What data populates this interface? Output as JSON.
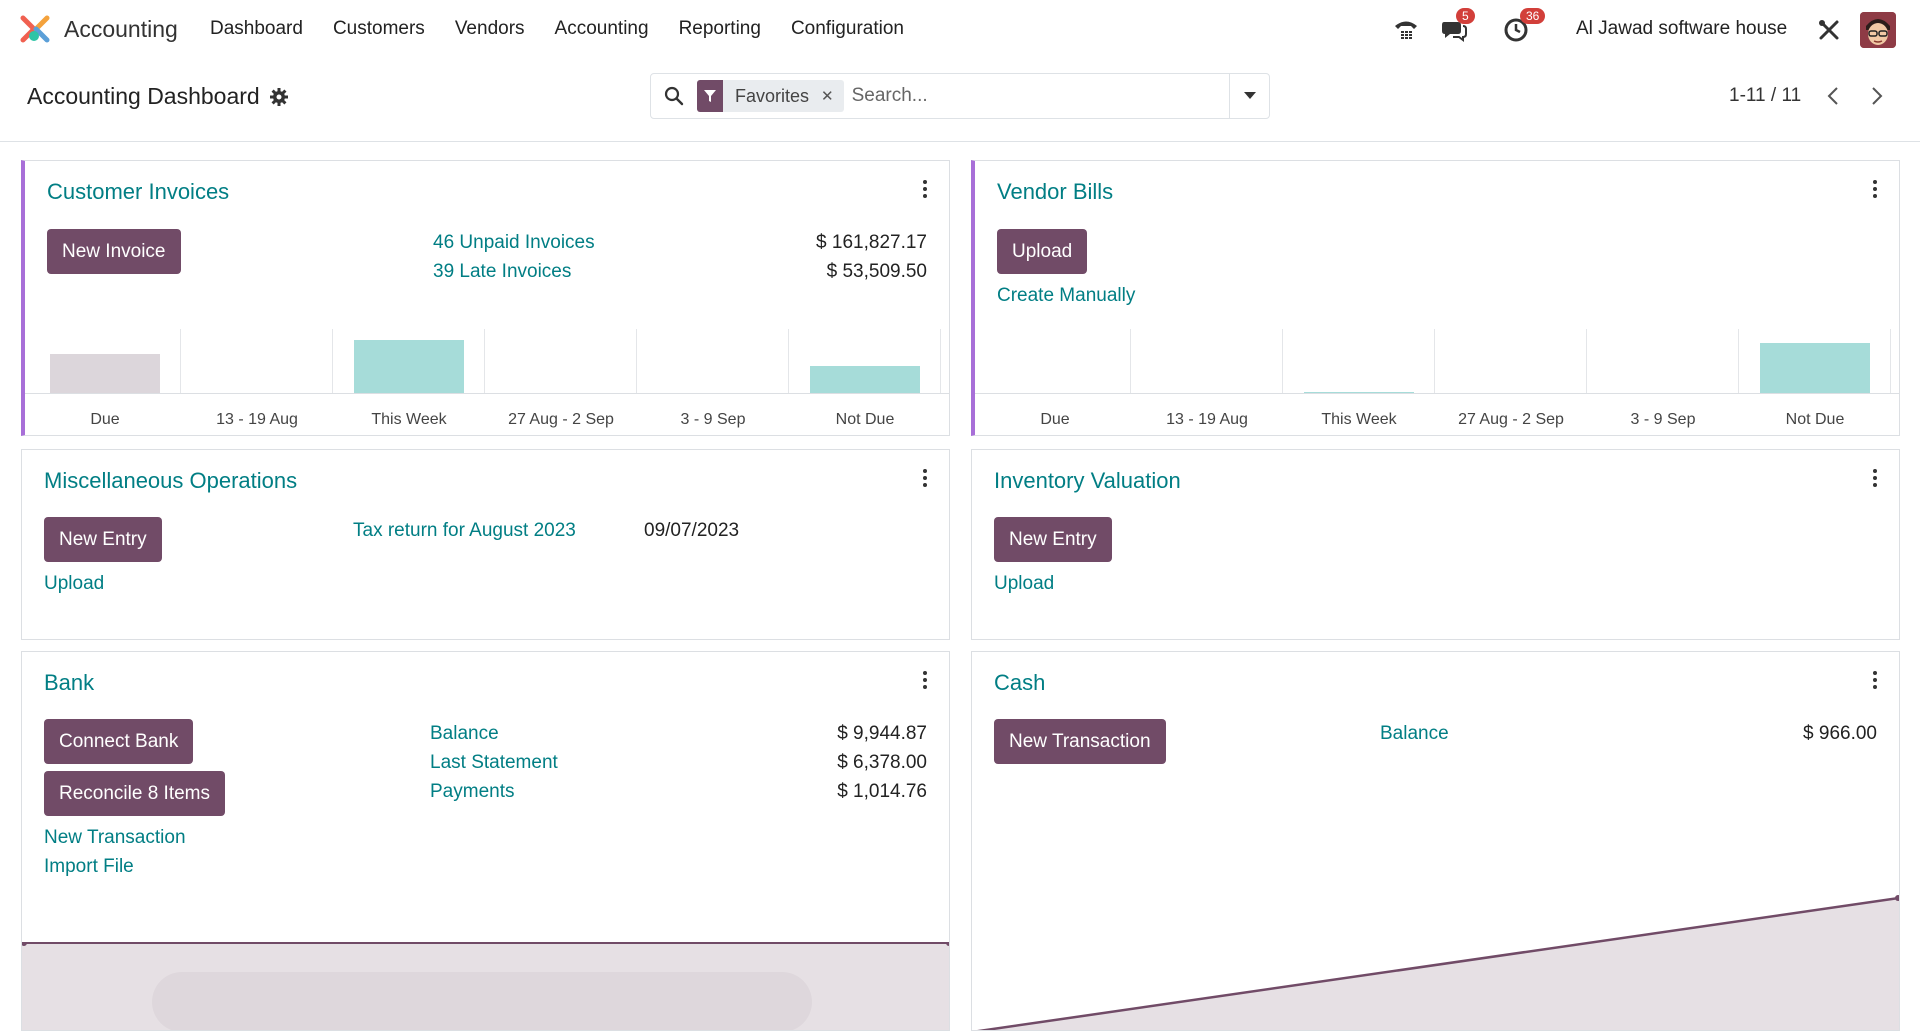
{
  "navbar": {
    "app_name": "Accounting",
    "menu": [
      "Dashboard",
      "Customers",
      "Vendors",
      "Accounting",
      "Reporting",
      "Configuration"
    ],
    "messages_count": "5",
    "activities_count": "36",
    "company": "Al Jawad software house"
  },
  "control": {
    "title": "Accounting Dashboard",
    "facet_label": "Favorites",
    "search_placeholder": "Search...",
    "pager": "1-11 / 11"
  },
  "customer_invoices": {
    "title": "Customer Invoices",
    "button": "New Invoice",
    "unpaid_label": "46 Unpaid Invoices",
    "unpaid_amount": "$ 161,827.17",
    "late_label": "39 Late Invoices",
    "late_amount": "$ 53,509.50"
  },
  "vendor_bills": {
    "title": "Vendor Bills",
    "button": "Upload",
    "link": "Create Manually"
  },
  "misc_ops": {
    "title": "Miscellaneous Operations",
    "button": "New Entry",
    "upload": "Upload",
    "entry_label": "Tax return for August 2023",
    "entry_date": "09/07/2023"
  },
  "inventory": {
    "title": "Inventory Valuation",
    "button": "New Entry",
    "upload": "Upload"
  },
  "bank": {
    "title": "Bank",
    "connect": "Connect Bank",
    "reconcile": "Reconcile 8 Items",
    "new_transaction": "New Transaction",
    "import_file": "Import File",
    "balance_label": "Balance",
    "balance": "$ 9,944.87",
    "statement_label": "Last Statement",
    "statement": "$ 6,378.00",
    "payments_label": "Payments",
    "payments": "$ 1,014.76"
  },
  "cash": {
    "title": "Cash",
    "button": "New Transaction",
    "balance_label": "Balance",
    "balance": "$ 966.00"
  },
  "chart_data": [
    {
      "type": "bar",
      "categories": [
        "Due",
        "13 - 19 Aug",
        "This Week",
        "27 Aug - 2 Sep",
        "3 - 9 Sep",
        "Not Due"
      ],
      "values": [
        0.62,
        0,
        0.85,
        0,
        0,
        0.43
      ],
      "colors": [
        "#dcd6db",
        "#a6dcd9",
        "#a6dcd9",
        "#a6dcd9",
        "#a6dcd9",
        "#a6dcd9"
      ]
    },
    {
      "type": "bar",
      "categories": [
        "Due",
        "13 - 19 Aug",
        "This Week",
        "27 Aug - 2 Sep",
        "3 - 9 Sep",
        "Not Due"
      ],
      "values": [
        0,
        0,
        0.03,
        0,
        0,
        0.79
      ],
      "colors": [
        "#a6dcd9",
        "#a6dcd9",
        "#a6dcd9",
        "#a6dcd9",
        "#a6dcd9",
        "#a6dcd9"
      ]
    }
  ]
}
